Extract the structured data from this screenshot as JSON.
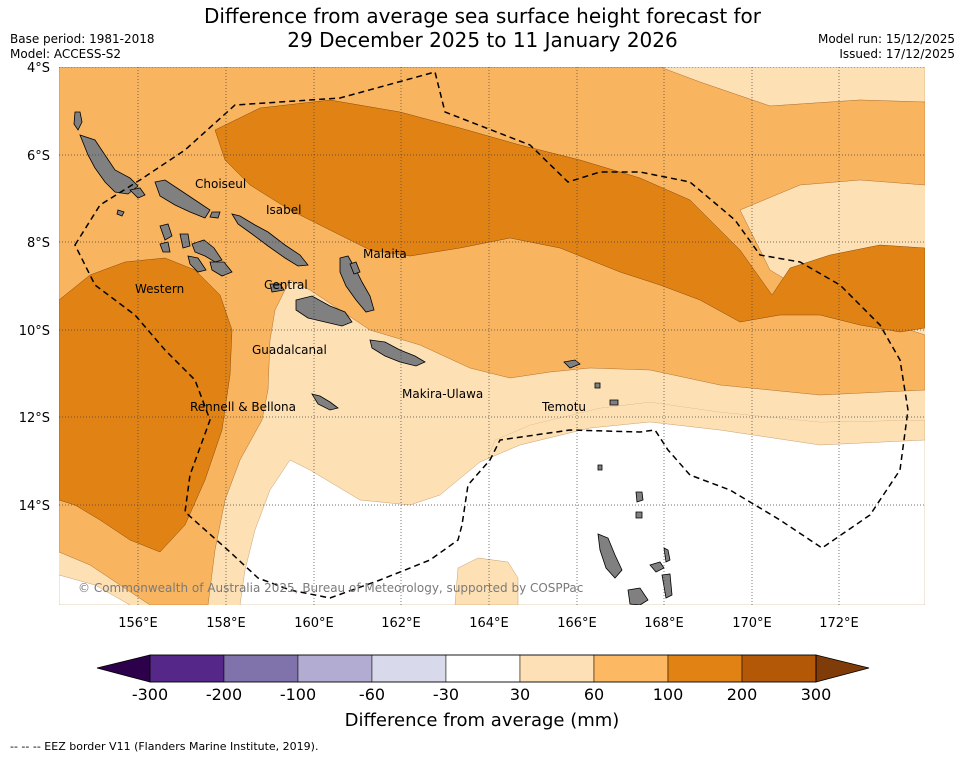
{
  "title": {
    "line1": "Difference from average sea surface height forecast for",
    "line2": "29 December 2025 to 11 January 2026"
  },
  "meta_left": {
    "base_period": "Base period: 1981-2018",
    "model": "Model: ACCESS-S2"
  },
  "meta_right": {
    "model_run": "Model run: 15/12/2025",
    "issued": "Issued: 17/12/2025"
  },
  "map": {
    "lat_labels": [
      "4°S",
      "6°S",
      "8°S",
      "10°S",
      "12°S",
      "14°S"
    ],
    "lon_labels": [
      "156°E",
      "158°E",
      "160°E",
      "162°E",
      "164°E",
      "166°E",
      "168°E",
      "170°E",
      "172°E"
    ],
    "regions": {
      "choiseul": "Choiseul",
      "isabel": "Isabel",
      "malaita": "Malaita",
      "western": "Western",
      "central": "Central",
      "guadalcanal": "Guadalcanal",
      "rennell_bellona": "Rennell & Bellona",
      "makira_ulawa": "Makira-Ulawa",
      "temotu": "Temotu"
    },
    "copyright": "© Commonwealth of Australia 2025, Bureau of Meteorology, supported by COSPPac",
    "colors": {
      "band_30_60": "#fde0b4",
      "band_60_100": "#f9b45f",
      "band_100_200": "#e08214",
      "land": "#808080",
      "eez_line": "#000000"
    }
  },
  "colorbar": {
    "tick_labels": [
      "-300",
      "-200",
      "-100",
      "-60",
      "-30",
      "30",
      "60",
      "100",
      "200",
      "300"
    ],
    "segment_colors": [
      "#542788",
      "#8073ac",
      "#b2abd2",
      "#d8daeb",
      "#ffffff",
      "#fee0b6",
      "#fdb863",
      "#e08214",
      "#b35806"
    ],
    "under_color": "#2d004b",
    "over_color": "#7f3b08",
    "label": "Difference from average (mm)"
  },
  "footnote": "--  --  -- EEZ border V11 (Flanders Marine Institute, 2019)."
}
